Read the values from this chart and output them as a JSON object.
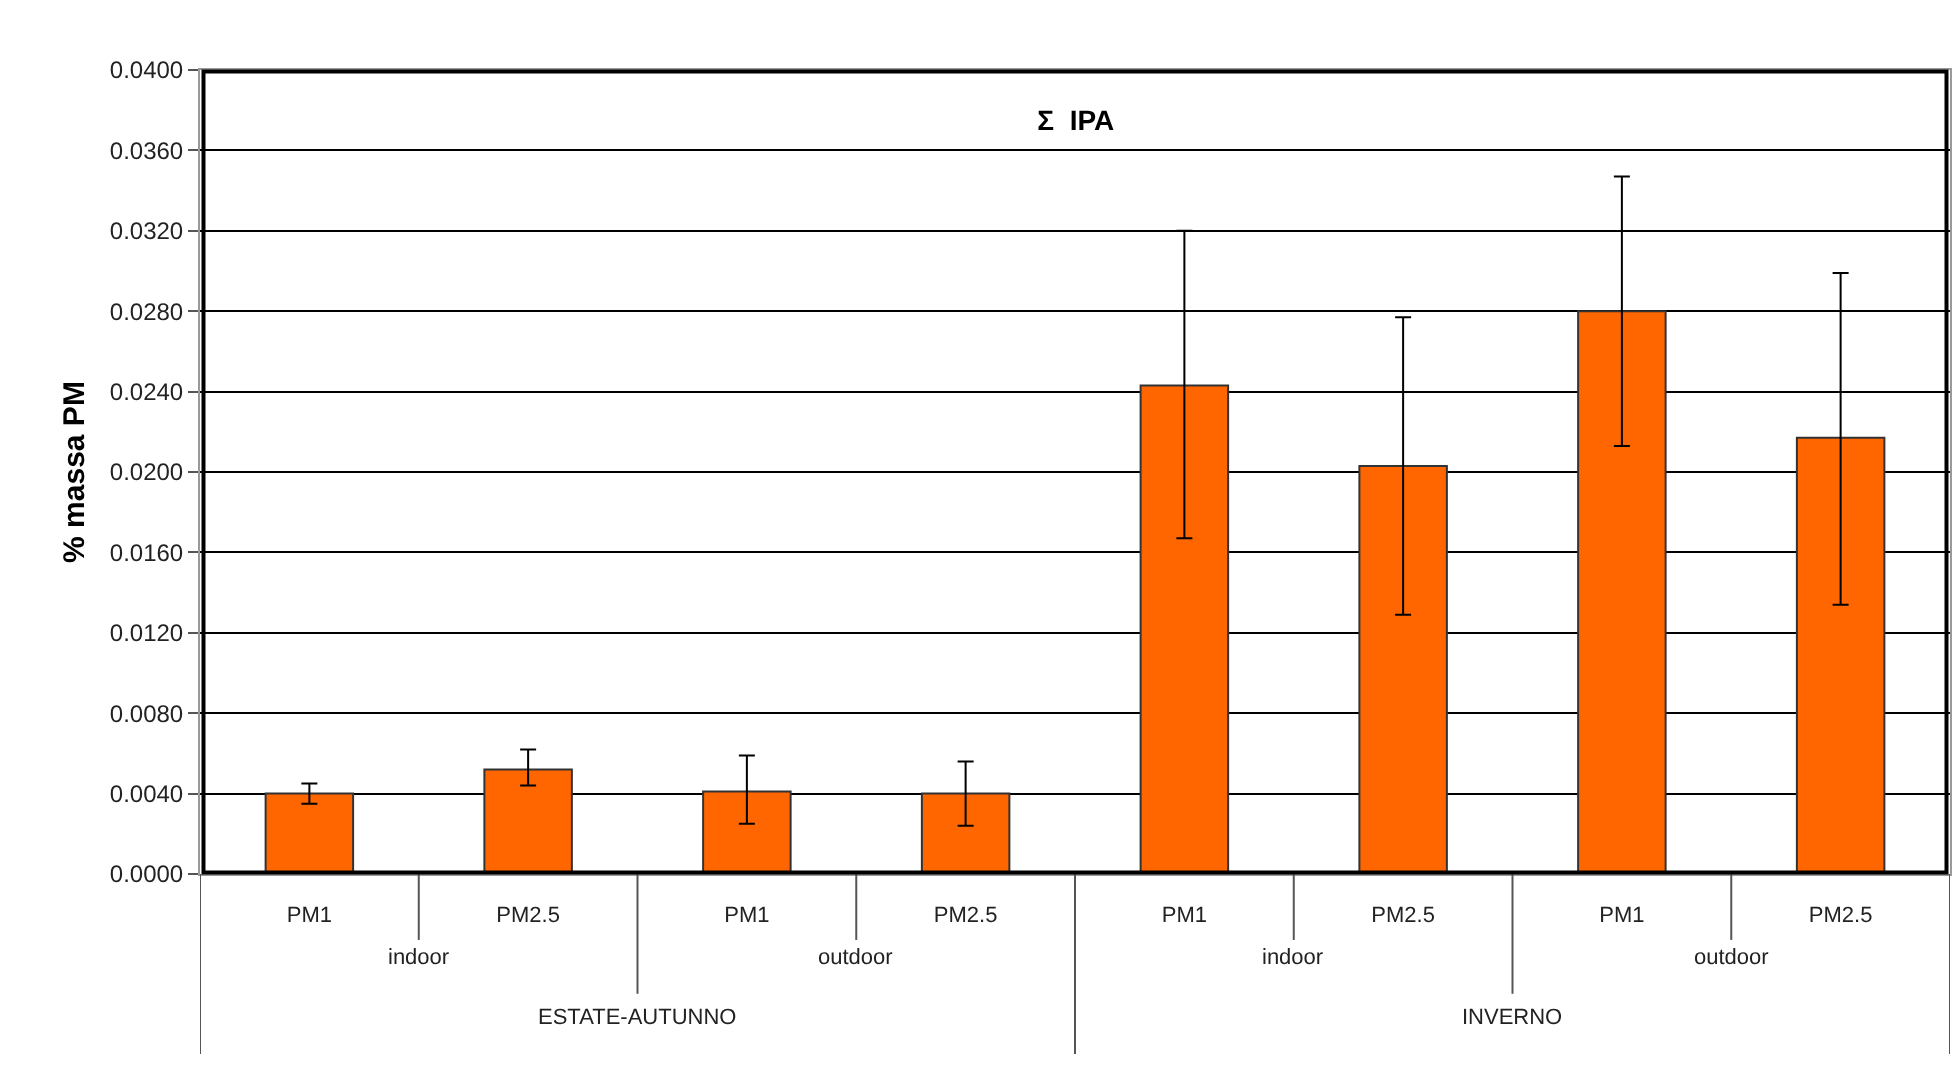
{
  "chart_data": {
    "type": "bar",
    "title": "Σ  IPA",
    "ylabel": "% massa PM",
    "categories": [
      "PM1",
      "PM2.5",
      "PM1",
      "PM2.5",
      "PM1",
      "PM2.5",
      "PM1",
      "PM2.5"
    ],
    "series": [
      {
        "color": "#ff6600",
        "values": [
          0.004,
          0.0052,
          0.0041,
          0.004,
          0.0243,
          0.0203,
          0.028,
          0.0217
        ],
        "errors": [
          [
            0.0035,
            0.0045
          ],
          [
            0.0044,
            0.0062
          ],
          [
            0.0025,
            0.0059
          ],
          [
            0.0024,
            0.0056
          ],
          [
            0.0167,
            0.032
          ],
          [
            0.0129,
            0.0277
          ],
          [
            0.0213,
            0.0347
          ],
          [
            0.0134,
            0.0299
          ]
        ]
      }
    ],
    "annotations": [
      "indoor",
      "outdoor",
      "indoor",
      "outdoor",
      "ESTATE-AUTUNNO",
      "INVERNO"
    ],
    "ylim": [
      0,
      0.04
    ],
    "yticks": [
      {
        "value": 0,
        "label": "0.0000"
      },
      {
        "value": 0.004,
        "label": "0.0040"
      },
      {
        "value": 0.008,
        "label": "0.0080"
      },
      {
        "value": 0.012,
        "label": "0.0120"
      },
      {
        "value": 0.016,
        "label": "0.0160"
      },
      {
        "value": 0.02,
        "label": "0.0200"
      },
      {
        "value": 0.024,
        "label": "0.0240"
      },
      {
        "value": 0.028,
        "label": "0.0280"
      },
      {
        "value": 0.032,
        "label": "0.0320"
      },
      {
        "value": 0.036,
        "label": "0.0360"
      },
      {
        "value": 0.04,
        "label": "0.0400"
      }
    ],
    "grid": "y",
    "legend": false
  }
}
